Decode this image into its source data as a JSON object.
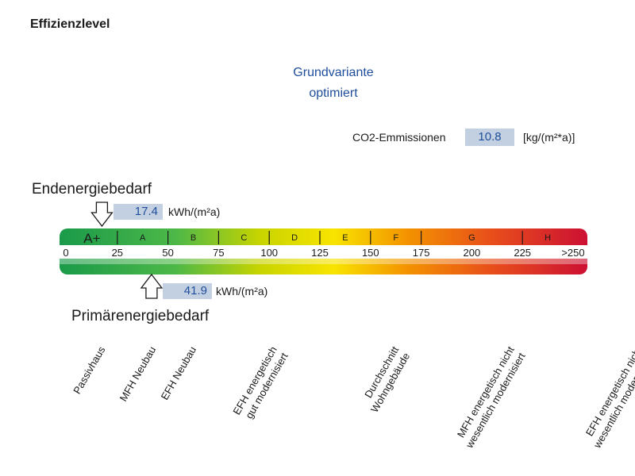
{
  "header": {
    "title": "Effizienzlevel",
    "variant_line1": "Grundvariante",
    "variant_line2": "optimiert"
  },
  "co2": {
    "label": "CO2-Emmissionen",
    "value": "10.8",
    "unit": "[kg/(m²*a)]"
  },
  "end_energy": {
    "label": "Endenergiebedarf",
    "value": "17.4",
    "unit": "kWh/(m²a)"
  },
  "primary_energy": {
    "label": "Primärenergiebedarf",
    "value": "41.9",
    "unit": "kWh/(m²a)"
  },
  "chart_data": {
    "type": "bar",
    "xlim": [
      0,
      250
    ],
    "ticks": [
      "0",
      "25",
      "50",
      "75",
      "100",
      "125",
      "150",
      "175",
      "200",
      "225",
      ">250"
    ],
    "classes": [
      {
        "label": "A+",
        "from": 0,
        "to": 25
      },
      {
        "label": "A",
        "from": 25,
        "to": 50
      },
      {
        "label": "B",
        "from": 50,
        "to": 75
      },
      {
        "label": "C",
        "from": 75,
        "to": 100
      },
      {
        "label": "D",
        "from": 100,
        "to": 125
      },
      {
        "label": "E",
        "from": 125,
        "to": 150
      },
      {
        "label": "F",
        "from": 150,
        "to": 175
      },
      {
        "label": "G",
        "from": 175,
        "to": 225
      },
      {
        "label": "H",
        "from": 225,
        "to": 250
      }
    ],
    "markers": [
      {
        "name": "Endenergiebedarf",
        "value": 17.4
      },
      {
        "name": "Primärenergiebedarf",
        "value": 41.9
      }
    ],
    "colors": {
      "green": "#1a9a4a",
      "yellow": "#f2e600",
      "orange": "#f39200",
      "red": "#e2231a",
      "darkred": "#cc1033",
      "text_blue": "#1f4e9c"
    }
  },
  "building_types": [
    {
      "text": "Passivhaus",
      "at": 15
    },
    {
      "text": "MFH Neubau",
      "at": 40
    },
    {
      "text": "EFH Neubau",
      "at": 60
    },
    {
      "text": "EFH energetisch\ngut modernisiert",
      "at": 100
    },
    {
      "text": "Durchschnitt\nWohngebäude",
      "at": 160
    },
    {
      "text": "MFH energetisch nicht\nwesentlich modernisiert",
      "at": 217
    },
    {
      "text": "EFH energetisch nicht\nwesentlich modernisiert",
      "at": 280
    }
  ]
}
